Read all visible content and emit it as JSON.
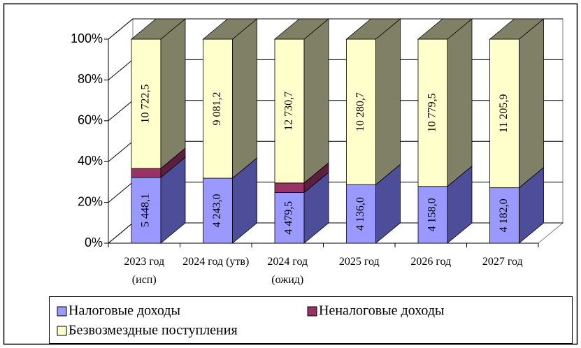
{
  "chart_data": {
    "type": "stacked-bar-3d-percent",
    "categories": [
      "2023 год (исп)",
      "2024 год (утв)",
      "2024 год (ожид)",
      "2025 год",
      "2026 год",
      "2027 год"
    ],
    "series": [
      {
        "name": "Налоговые доходы",
        "color": "#9999ff",
        "side_color": "#4d4d99",
        "values": [
          5448.1,
          4243.0,
          4479.5,
          4136.0,
          4158.0,
          4182.0
        ],
        "value_labels": [
          "5 448,1",
          "4 243,0",
          "4 479,5",
          "4 136,0",
          "4 158,0",
          "4 182,0"
        ]
      },
      {
        "name": "Неналоговые доходы",
        "color": "#993366",
        "side_color": "#5c1f3d",
        "values": [
          750,
          0,
          850,
          0,
          0,
          0
        ]
      },
      {
        "name": "Безвозмездные поступления",
        "color": "#ffffcc",
        "side_color": "#808066",
        "values": [
          10722.5,
          9081.2,
          12730.7,
          10280.7,
          10779.5,
          11205.9
        ],
        "value_labels": [
          "10 722,5",
          "9 081,2",
          "12 730,7",
          "10 280,7",
          "10 779,5",
          "11 205,9"
        ]
      }
    ],
    "ylim": [
      0,
      100
    ],
    "yticks": [
      {
        "value": 0,
        "label": "0%"
      },
      {
        "value": 20,
        "label": "20%"
      },
      {
        "value": 40,
        "label": "40%"
      },
      {
        "value": 60,
        "label": "60%"
      },
      {
        "value": 80,
        "label": "80%"
      },
      {
        "value": 100,
        "label": "100%"
      }
    ],
    "grid": true
  }
}
